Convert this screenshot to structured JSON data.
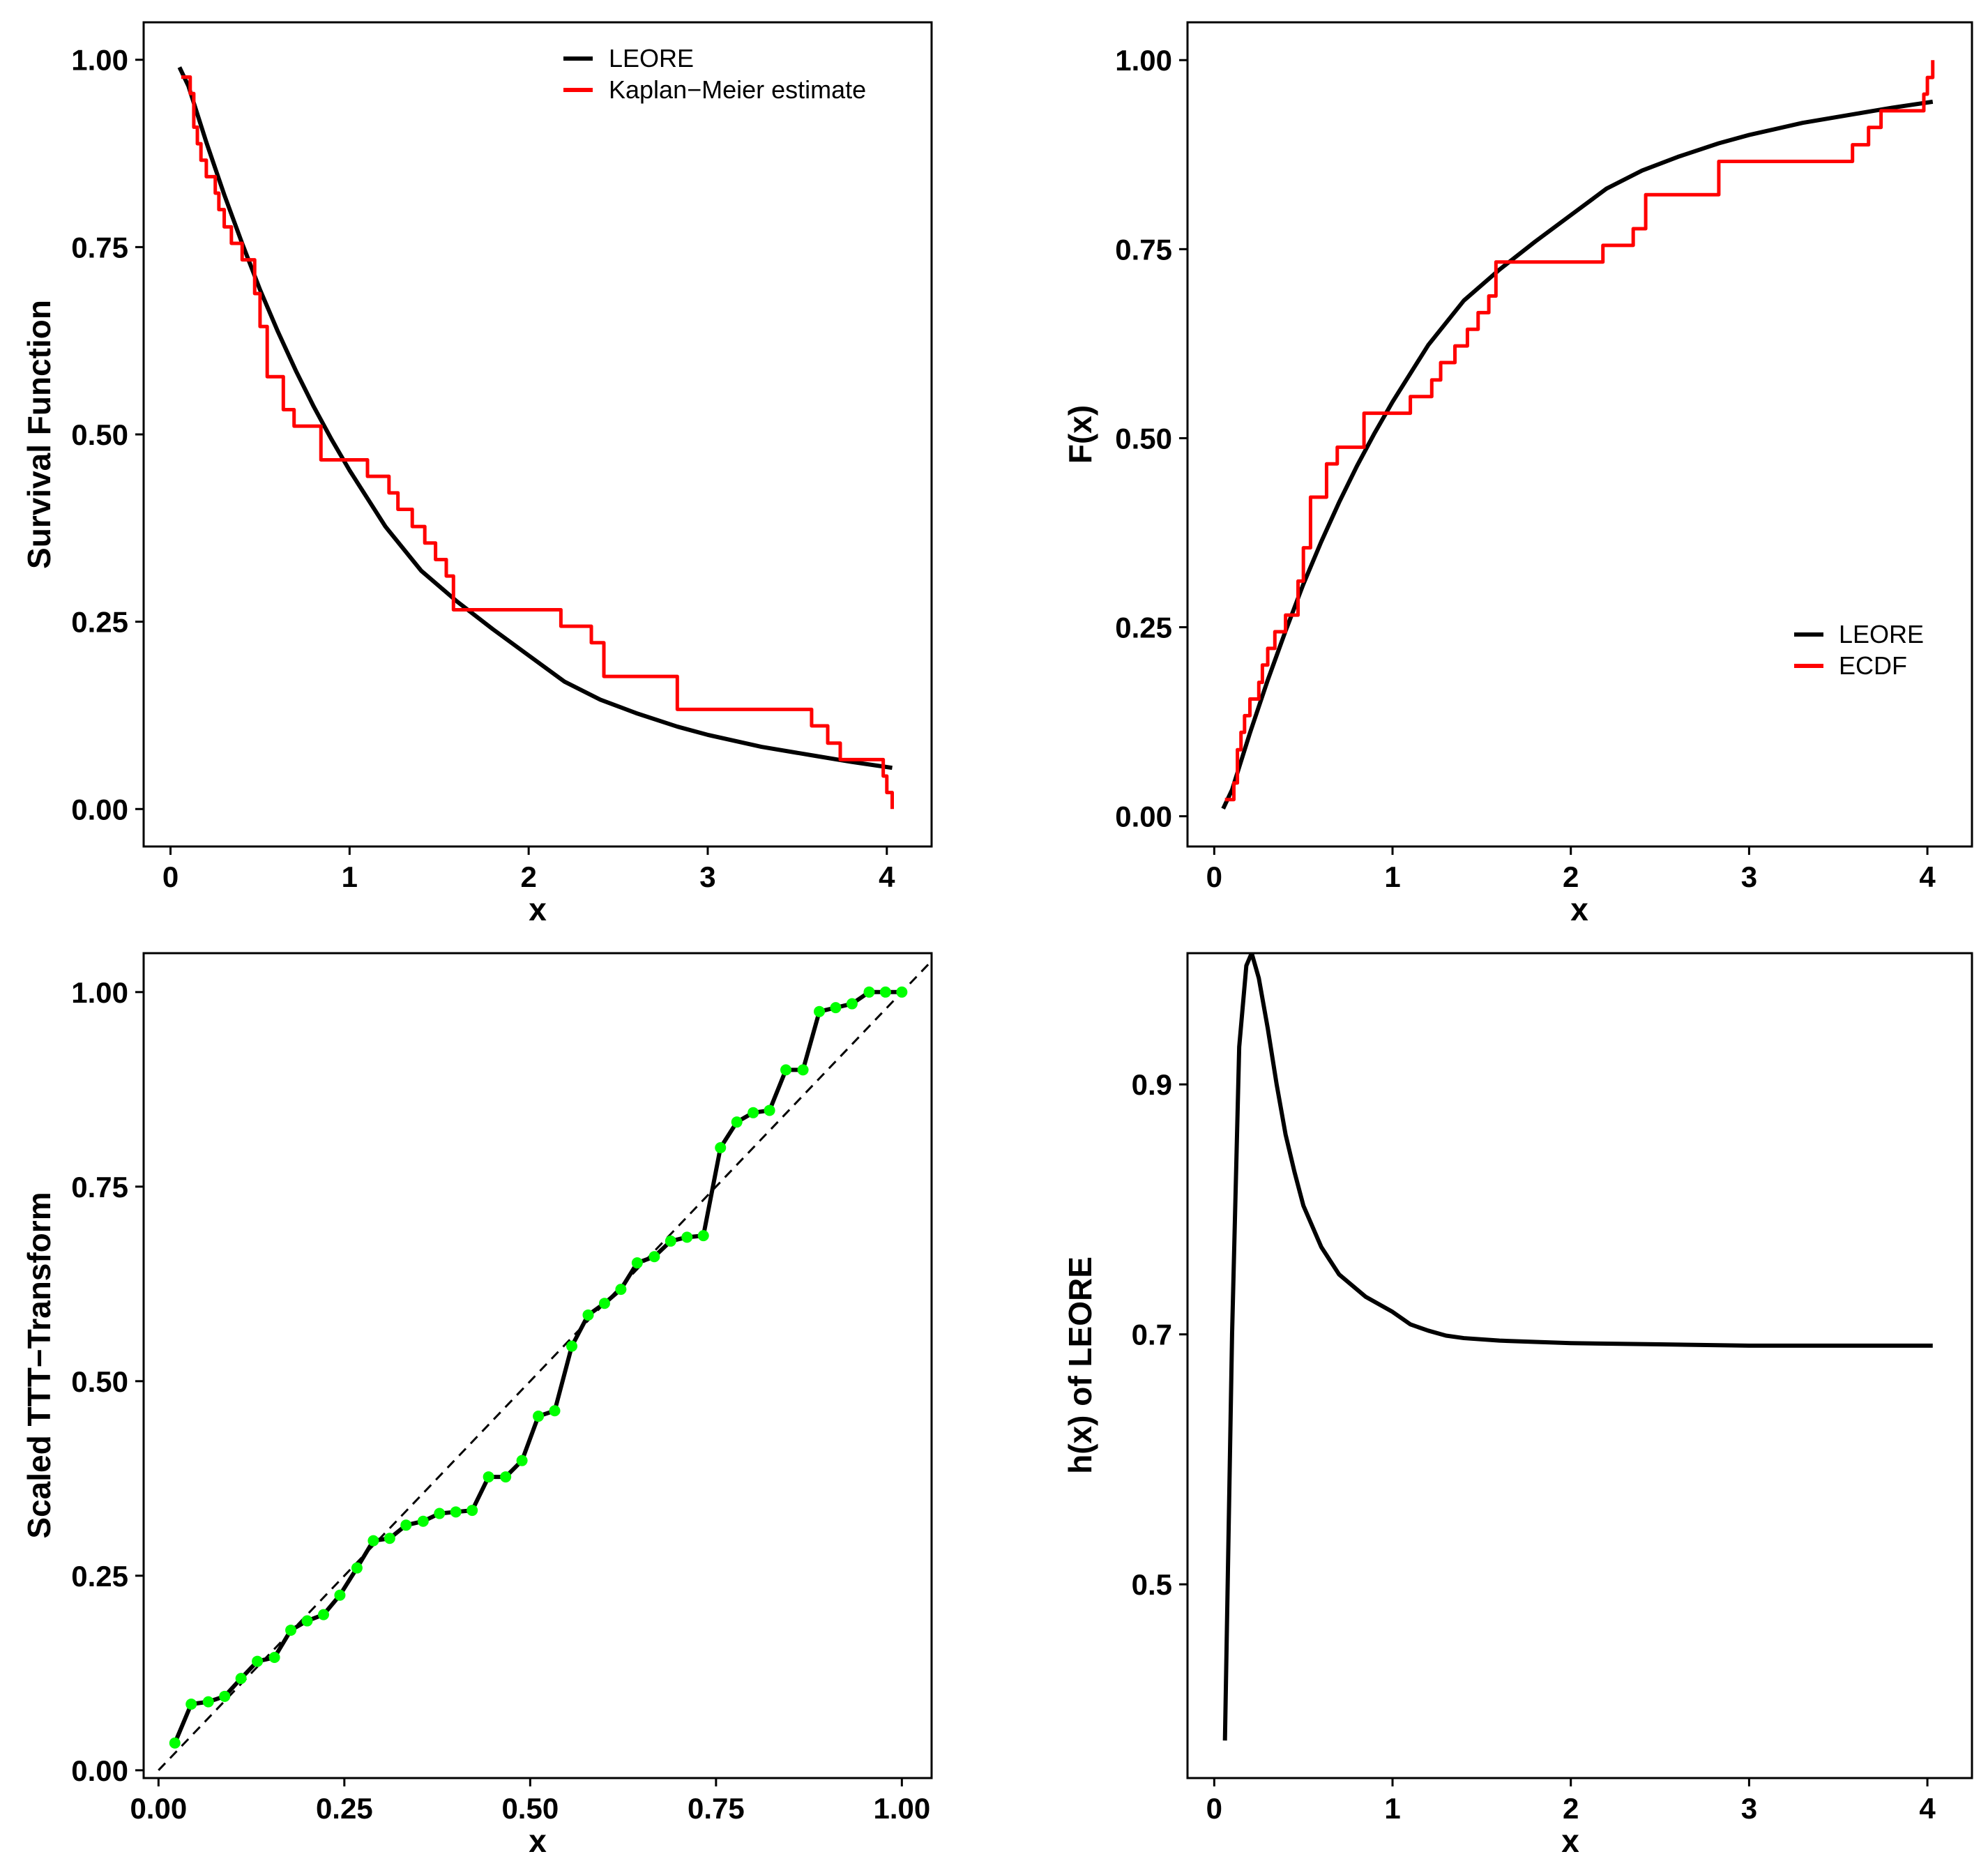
{
  "colors": {
    "model": "#000000",
    "empirical": "#ff0000",
    "ttt_point": "#00ff00",
    "reference": "#000000",
    "background": "#ffffff"
  },
  "chart_data": [
    {
      "type": "line",
      "title": "",
      "xlabel": "x",
      "ylabel": "Survival Function",
      "xlim": [
        -0.15,
        4.25
      ],
      "ylim": [
        -0.05,
        1.05
      ],
      "xticks": [
        0,
        1,
        2,
        3,
        4
      ],
      "xtick_labels": [
        "0",
        "1",
        "2",
        "3",
        "4"
      ],
      "yticks": [
        0,
        0.25,
        0.5,
        0.75,
        1
      ],
      "ytick_labels": [
        "0.00",
        "0.25",
        "0.50",
        "0.75",
        "1.00"
      ],
      "legend": {
        "position": "top-right",
        "entries": [
          {
            "label": "LEORE",
            "color": "#000000"
          },
          {
            "label": "Kaplan−Meier estimate",
            "color": "#ff0000"
          }
        ]
      },
      "series": [
        {
          "name": "LEORE",
          "style": "line",
          "color": "#000000",
          "x": [
            0.05,
            0.1,
            0.2,
            0.3,
            0.4,
            0.5,
            0.6,
            0.7,
            0.8,
            0.9,
            1.0,
            1.2,
            1.4,
            1.6,
            1.8,
            2.0,
            2.2,
            2.4,
            2.6,
            2.83,
            3.0,
            3.3,
            3.6,
            3.8,
            4.03
          ],
          "y": [
            0.99,
            0.965,
            0.89,
            0.82,
            0.755,
            0.693,
            0.637,
            0.585,
            0.537,
            0.493,
            0.452,
            0.377,
            0.318,
            0.277,
            0.24,
            0.205,
            0.17,
            0.146,
            0.128,
            0.11,
            0.099,
            0.083,
            0.071,
            0.063,
            0.055
          ]
        },
        {
          "name": "Kaplan−Meier estimate",
          "style": "step",
          "color": "#ff0000",
          "x": [
            0.06,
            0.11,
            0.13,
            0.15,
            0.17,
            0.2,
            0.25,
            0.27,
            0.3,
            0.34,
            0.4,
            0.47,
            0.5,
            0.54,
            0.63,
            0.69,
            0.84,
            1.1,
            1.22,
            1.27,
            1.35,
            1.42,
            1.48,
            1.54,
            1.58,
            2.18,
            2.35,
            2.42,
            2.83,
            3.58,
            3.67,
            3.74,
            3.98,
            4.0,
            4.03
          ],
          "y": [
            0.977,
            0.955,
            0.91,
            0.888,
            0.866,
            0.844,
            0.822,
            0.8,
            0.777,
            0.755,
            0.733,
            0.688,
            0.644,
            0.577,
            0.533,
            0.511,
            0.466,
            0.444,
            0.422,
            0.4,
            0.377,
            0.355,
            0.333,
            0.311,
            0.266,
            0.244,
            0.222,
            0.177,
            0.133,
            0.111,
            0.088,
            0.066,
            0.044,
            0.022,
            0.0
          ]
        }
      ]
    },
    {
      "type": "line",
      "title": "",
      "xlabel": "x",
      "ylabel": "F(x)",
      "xlim": [
        -0.15,
        4.25
      ],
      "ylim": [
        -0.04,
        1.05
      ],
      "xticks": [
        0,
        1,
        2,
        3,
        4
      ],
      "xtick_labels": [
        "0",
        "1",
        "2",
        "3",
        "4"
      ],
      "yticks": [
        0,
        0.25,
        0.5,
        0.75,
        1
      ],
      "ytick_labels": [
        "0.00",
        "0.25",
        "0.50",
        "0.75",
        "1.00"
      ],
      "legend": {
        "position": "bottom-right",
        "entries": [
          {
            "label": "LEORE",
            "color": "#000000"
          },
          {
            "label": "ECDF",
            "color": "#ff0000"
          }
        ]
      },
      "series": [
        {
          "name": "LEORE",
          "style": "line",
          "color": "#000000",
          "x": [
            0.05,
            0.1,
            0.2,
            0.3,
            0.4,
            0.5,
            0.6,
            0.7,
            0.8,
            0.9,
            1.0,
            1.2,
            1.4,
            1.6,
            1.8,
            2.0,
            2.2,
            2.4,
            2.6,
            2.83,
            3.0,
            3.3,
            3.6,
            3.8,
            4.03
          ],
          "y": [
            0.01,
            0.035,
            0.11,
            0.18,
            0.245,
            0.307,
            0.363,
            0.415,
            0.463,
            0.507,
            0.548,
            0.623,
            0.682,
            0.723,
            0.76,
            0.795,
            0.83,
            0.854,
            0.872,
            0.89,
            0.901,
            0.917,
            0.929,
            0.937,
            0.945
          ]
        },
        {
          "name": "ECDF",
          "style": "step",
          "color": "#ff0000",
          "x": [
            0.06,
            0.11,
            0.13,
            0.15,
            0.17,
            0.2,
            0.25,
            0.27,
            0.3,
            0.34,
            0.4,
            0.47,
            0.5,
            0.54,
            0.63,
            0.69,
            0.84,
            1.1,
            1.22,
            1.27,
            1.35,
            1.42,
            1.48,
            1.54,
            1.58,
            2.18,
            2.35,
            2.42,
            2.83,
            3.58,
            3.67,
            3.74,
            3.98,
            4.0,
            4.03
          ],
          "y": [
            0.022,
            0.044,
            0.088,
            0.111,
            0.133,
            0.155,
            0.177,
            0.2,
            0.222,
            0.244,
            0.266,
            0.311,
            0.355,
            0.422,
            0.466,
            0.488,
            0.533,
            0.555,
            0.577,
            0.6,
            0.622,
            0.644,
            0.666,
            0.688,
            0.733,
            0.755,
            0.777,
            0.822,
            0.866,
            0.888,
            0.911,
            0.933,
            0.955,
            0.977,
            1.0
          ]
        }
      ]
    },
    {
      "type": "line",
      "title": "",
      "xlabel": "x",
      "ylabel": "Scaled TTT−Transform",
      "xlim": [
        -0.02,
        1.04
      ],
      "ylim": [
        -0.01,
        1.05
      ],
      "xticks": [
        0,
        0.25,
        0.5,
        0.75,
        1
      ],
      "xtick_labels": [
        "0.00",
        "0.25",
        "0.50",
        "0.75",
        "1.00"
      ],
      "yticks": [
        0,
        0.25,
        0.5,
        0.75,
        1
      ],
      "ytick_labels": [
        "0.00",
        "0.25",
        "0.50",
        "0.75",
        "1.00"
      ],
      "reference_line": {
        "from": [
          0,
          0
        ],
        "to": [
          1.04,
          1.04
        ],
        "style": "dashed"
      },
      "series": [
        {
          "name": "Scaled TTT−Transform",
          "style": "line+points",
          "color": "#000000",
          "marker_color": "#00ff00",
          "x": [
            0.022,
            0.044,
            0.067,
            0.089,
            0.111,
            0.133,
            0.156,
            0.178,
            0.2,
            0.222,
            0.244,
            0.267,
            0.289,
            0.311,
            0.333,
            0.356,
            0.378,
            0.4,
            0.422,
            0.444,
            0.467,
            0.489,
            0.511,
            0.533,
            0.556,
            0.578,
            0.6,
            0.622,
            0.644,
            0.667,
            0.689,
            0.711,
            0.733,
            0.756,
            0.778,
            0.8,
            0.822,
            0.844,
            0.867,
            0.889,
            0.911,
            0.933,
            0.956,
            0.978,
            1.0
          ],
          "y": [
            0.035,
            0.085,
            0.088,
            0.095,
            0.118,
            0.14,
            0.145,
            0.18,
            0.192,
            0.2,
            0.225,
            0.26,
            0.295,
            0.298,
            0.315,
            0.32,
            0.33,
            0.332,
            0.334,
            0.377,
            0.377,
            0.398,
            0.455,
            0.462,
            0.545,
            0.585,
            0.6,
            0.618,
            0.652,
            0.66,
            0.68,
            0.685,
            0.687,
            0.8,
            0.833,
            0.845,
            0.848,
            0.9,
            0.9,
            0.975,
            0.98,
            0.985,
            1.0,
            1.0,
            1.0
          ]
        }
      ]
    },
    {
      "type": "line",
      "title": "",
      "xlabel": "x",
      "ylabel": "h(x) of LEORE",
      "xlim": [
        -0.15,
        4.25
      ],
      "ylim": [
        0.345,
        1.005
      ],
      "xticks": [
        0,
        1,
        2,
        3,
        4
      ],
      "xtick_labels": [
        "0",
        "1",
        "2",
        "3",
        "4"
      ],
      "yticks": [
        0.5,
        0.7,
        0.9
      ],
      "ytick_labels": [
        "0.5",
        "0.7",
        "0.9"
      ],
      "series": [
        {
          "name": "h(x) of LEORE",
          "style": "line",
          "color": "#000000",
          "x": [
            0.06,
            0.1,
            0.14,
            0.18,
            0.21,
            0.25,
            0.3,
            0.35,
            0.4,
            0.45,
            0.5,
            0.6,
            0.7,
            0.85,
            1.0,
            1.1,
            1.2,
            1.3,
            1.4,
            1.6,
            1.8,
            2.0,
            2.5,
            3.0,
            3.5,
            4.03
          ],
          "y": [
            0.375,
            0.7,
            0.93,
            0.995,
            1.005,
            0.985,
            0.945,
            0.9,
            0.86,
            0.83,
            0.803,
            0.77,
            0.748,
            0.73,
            0.718,
            0.708,
            0.703,
            0.699,
            0.697,
            0.695,
            0.694,
            0.693,
            0.692,
            0.691,
            0.691,
            0.691
          ]
        }
      ]
    }
  ]
}
